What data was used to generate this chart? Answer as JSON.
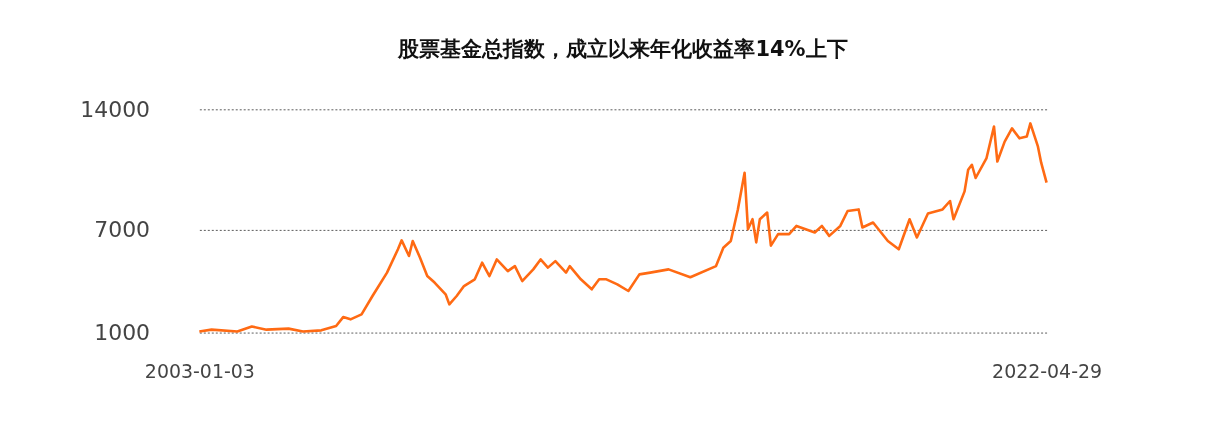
{
  "chart_data": {
    "type": "line",
    "title": "股票基金总指数，成立以来年化收益率14%上下",
    "x": [
      "2003-01-03",
      "2003-04-15",
      "2003-11-15",
      "2004-03-15",
      "2004-07-15",
      "2005-01-15",
      "2005-05-15",
      "2005-10-15",
      "2006-02-15",
      "2006-04-15",
      "2006-06-15",
      "2006-09-15",
      "2006-12-15",
      "2007-04-15",
      "2007-07-15",
      "2007-08-15",
      "2007-10-15",
      "2007-11-15",
      "2008-01-15",
      "2008-03-15",
      "2008-05-15",
      "2008-08-15",
      "2008-09-15",
      "2008-11-15",
      "2009-01-15",
      "2009-04-15",
      "2009-06-15",
      "2009-08-15",
      "2009-10-15",
      "2010-01-15",
      "2010-03-15",
      "2010-05-15",
      "2010-08-15",
      "2010-10-15",
      "2010-12-15",
      "2011-02-15",
      "2011-05-15",
      "2011-06-15",
      "2011-09-15",
      "2011-12-15",
      "2012-02-15",
      "2012-04-15",
      "2012-07-15",
      "2012-10-15",
      "2013-01-15",
      "2013-04-15",
      "2013-09-15",
      "2014-03-15",
      "2014-10-15",
      "2014-12-15",
      "2015-02-15",
      "2015-04-15",
      "2015-06-10",
      "2015-07-08",
      "2015-08-15",
      "2015-09-15",
      "2015-10-15",
      "2015-12-15",
      "2016-01-15",
      "2016-03-15",
      "2016-06-15",
      "2016-08-15",
      "2017-01-15",
      "2017-03-15",
      "2017-05-15",
      "2017-08-15",
      "2017-10-15",
      "2018-01-15",
      "2018-02-15",
      "2018-05-15",
      "2018-09-15",
      "2018-12-15",
      "2019-03-15",
      "2019-05-15",
      "2019-08-15",
      "2019-12-15",
      "2020-02-15",
      "2020-03-15",
      "2020-06-15",
      "2020-07-15",
      "2020-08-15",
      "2020-09-15",
      "2020-12-15",
      "2021-02-15",
      "2021-03-15",
      "2021-05-15",
      "2021-07-15",
      "2021-09-15",
      "2021-11-15",
      "2021-12-15",
      "2022-02-15",
      "2022-03-15",
      "2022-04-29"
    ],
    "series": [
      {
        "color": "#ff6a13",
        "values": [
          1060,
          1170,
          1060,
          1350,
          1170,
          1230,
          1060,
          1130,
          1380,
          1900,
          1770,
          2060,
          3130,
          4490,
          5850,
          6370,
          5460,
          6330,
          5360,
          4290,
          3910,
          3230,
          2640,
          3130,
          3710,
          4100,
          5070,
          4290,
          5260,
          4580,
          4870,
          4000,
          4680,
          5260,
          4780,
          5160,
          4490,
          4870,
          4100,
          3520,
          4100,
          4100,
          3810,
          3420,
          4390,
          4490,
          4680,
          4220,
          4870,
          5940,
          6330,
          8170,
          10300,
          7020,
          7600,
          6250,
          7600,
          7990,
          6060,
          6730,
          6730,
          7210,
          6830,
          7210,
          6630,
          7210,
          8080,
          8170,
          7120,
          7410,
          6330,
          5850,
          7600,
          6540,
          7930,
          8170,
          8660,
          7600,
          9220,
          10480,
          10770,
          10000,
          11160,
          13000,
          10960,
          12120,
          12890,
          12310,
          12410,
          13180,
          11860,
          10890,
          9730
        ]
      }
    ],
    "xlim": [
      "2003-01-03",
      "2022-04-29"
    ],
    "xticks": [
      "2003-01-03",
      "2022-04-29"
    ],
    "ylim": [
      1000,
      14000
    ],
    "yticks": [
      1000,
      7000,
      14000
    ],
    "grid": "y",
    "legend": false,
    "marker": "none",
    "line_style": "solid"
  }
}
